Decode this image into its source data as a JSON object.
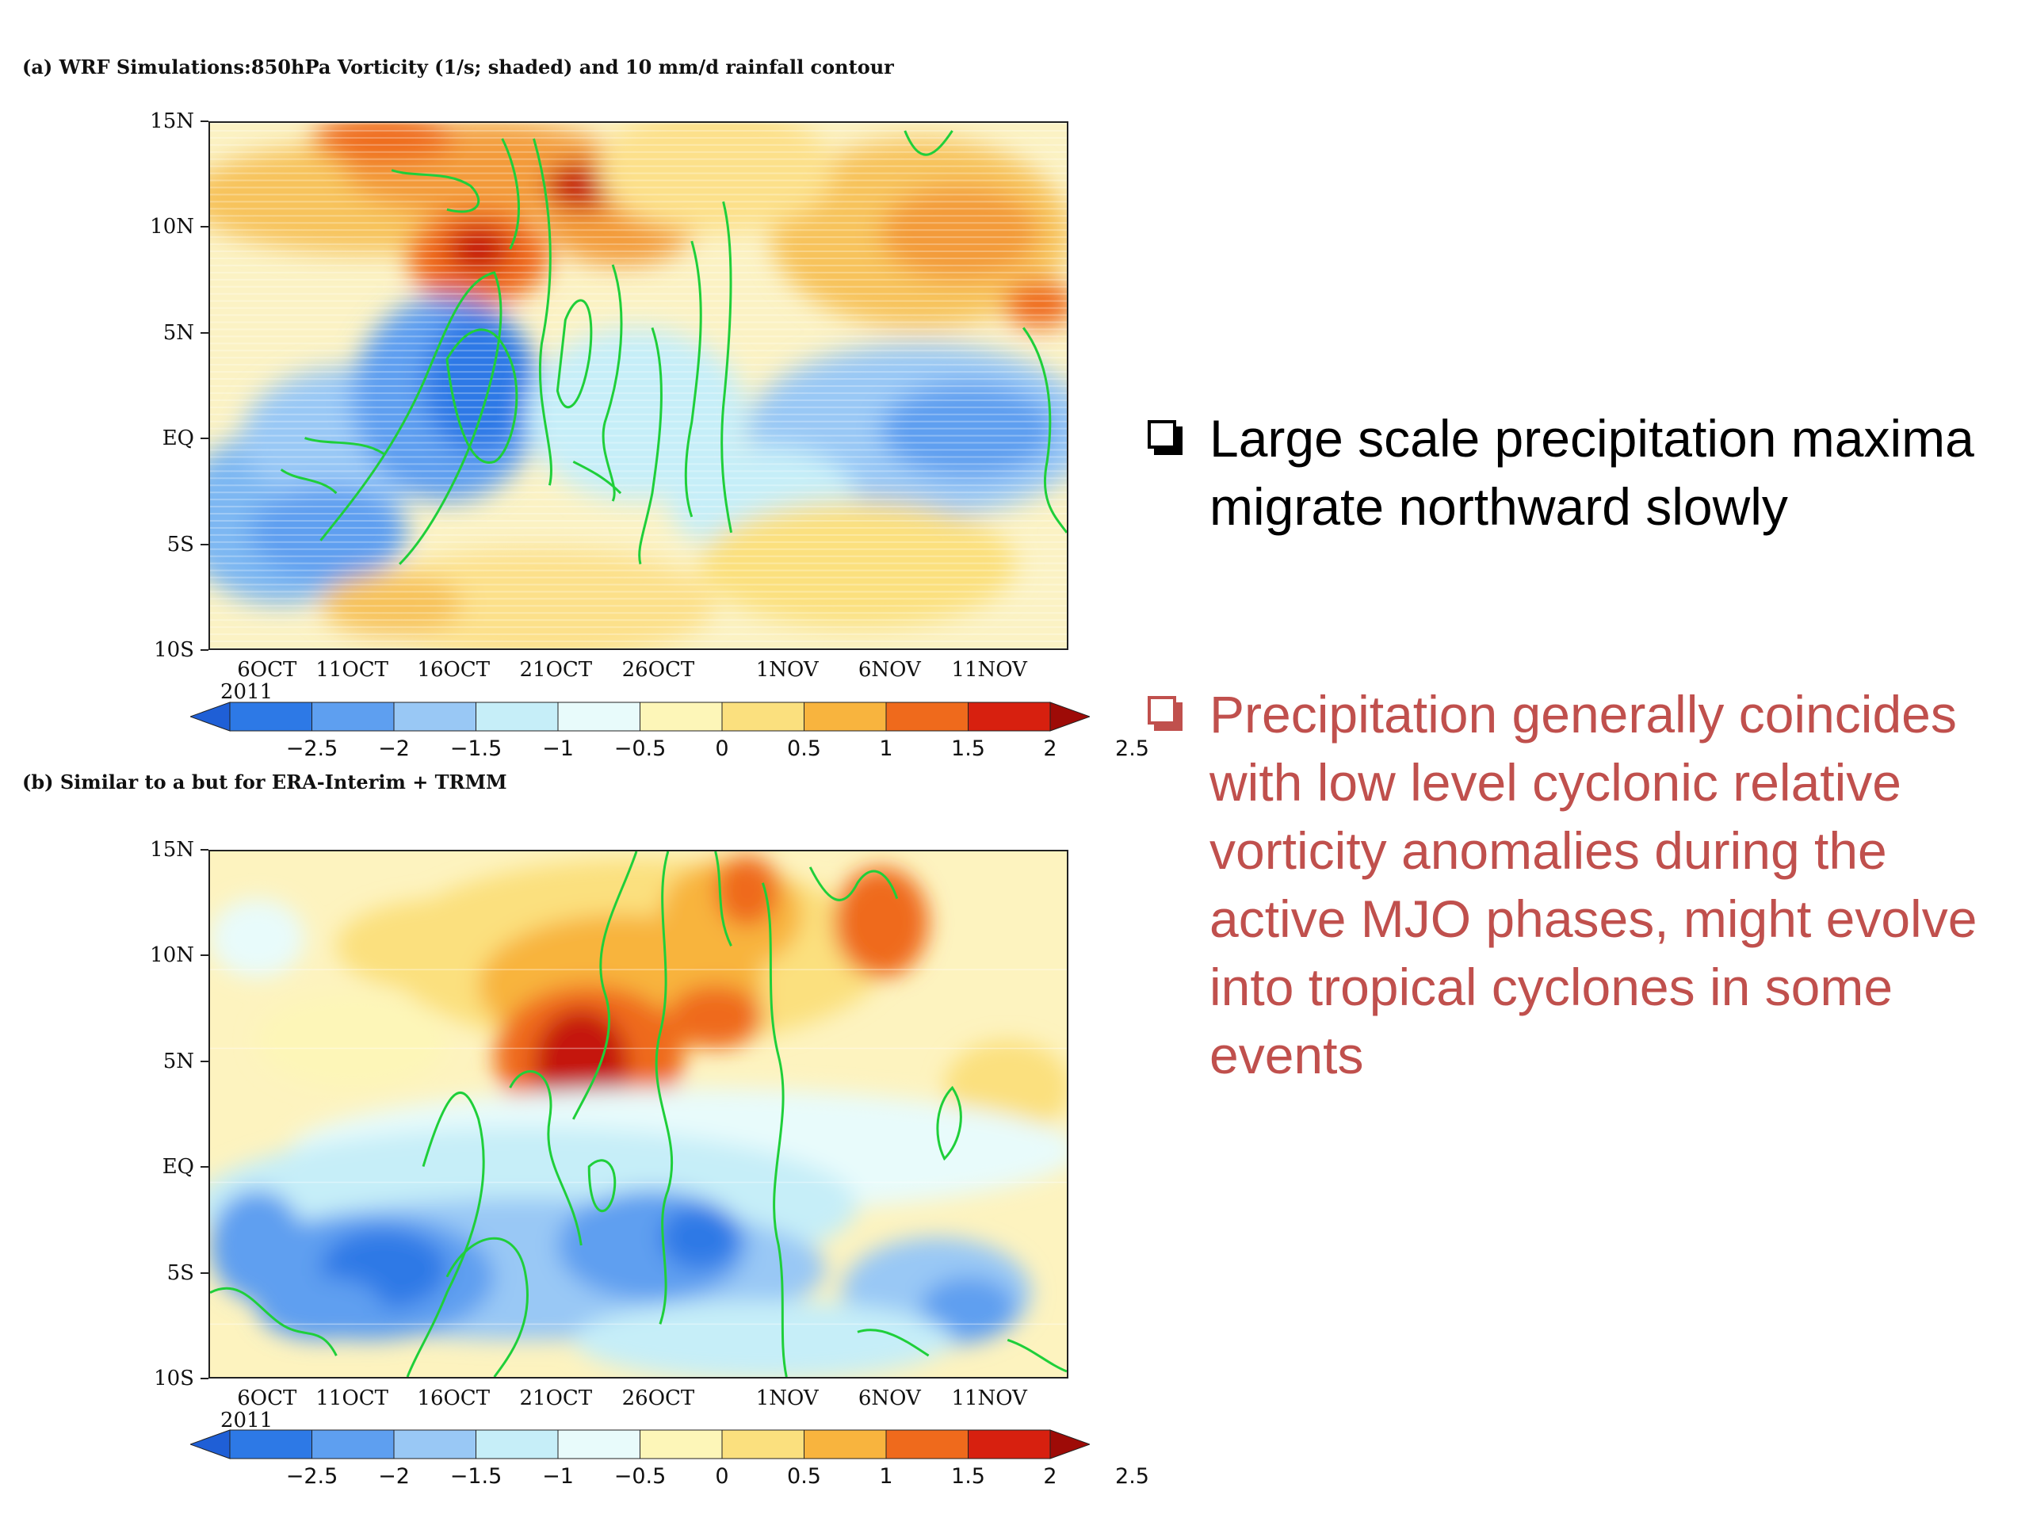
{
  "panel_a": {
    "title": "(a) WRF Simulations:850hPa Vorticity (1/s; shaded) and 10 mm/d rainfall contour"
  },
  "panel_b": {
    "title": "(b) Similar to a but for ERA-Interim + TRMM"
  },
  "axes": {
    "y_ticks": [
      "15N",
      "10N",
      "5N",
      "EQ",
      "5S",
      "10S"
    ],
    "x_ticks": [
      "6OCT",
      "11OCT",
      "16OCT",
      "21OCT",
      "26OCT",
      "1NOV",
      "6NOV",
      "11NOV"
    ],
    "year_label": "2011"
  },
  "colorbar": {
    "labels": [
      "−2.5",
      "−2",
      "−1.5",
      "−1",
      "−0.5",
      "0",
      "0.5",
      "1",
      "1.5",
      "2",
      "2.5"
    ],
    "colors": [
      "#1f5fd6",
      "#2d79e6",
      "#5e9ff0",
      "#99c8f5",
      "#c6eef8",
      "#e8fbfb",
      "#fdf6b8",
      "#fbe07e",
      "#f8b43e",
      "#ef6a1c",
      "#d7200f",
      "#9e0b07"
    ]
  },
  "bullets": [
    {
      "text": "Large scale precipitation maxima migrate northward slowly",
      "color": "#000000"
    },
    {
      "text": "Precipitation generally coincides with low level cyclonic relative vorticity anomalies during the active MJO phases, might evolve into tropical cyclones in some events",
      "color": "#c0504d"
    }
  ]
}
